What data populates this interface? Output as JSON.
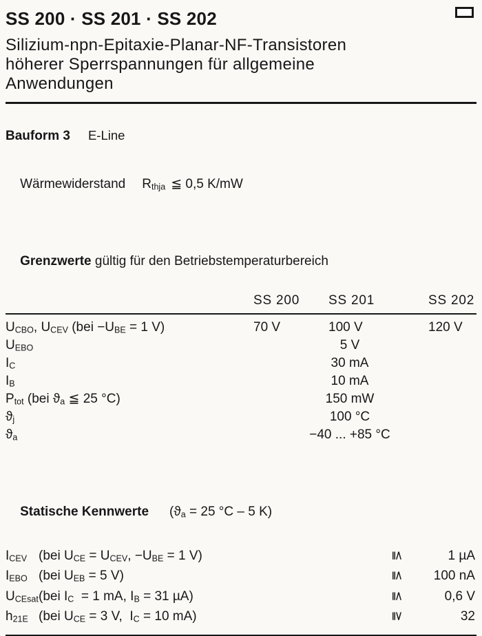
{
  "header": {
    "title": "SS 200 · SS 201 · SS 202",
    "subtitle_lines": [
      "Silizium-npn-Epitaxie-Planar-NF-Transistoren",
      "höherer Sperrspannungen für allgemeine",
      "Anwendungen"
    ]
  },
  "bauform": {
    "label": "Bauform 3",
    "value": "E-Line"
  },
  "thermal": {
    "label": "Wärmewiderstand",
    "symbol_main": "R",
    "symbol_sub": "thja",
    "value": "≦ 0,5 K/mW"
  },
  "grenzwerte": {
    "heading_bold": "Grenzwerte",
    "heading_rest": " gültig für den Betriebstemperaturbereich",
    "columns": [
      "SS 200",
      "SS 201",
      "SS 202"
    ],
    "row1": {
      "label": [
        "U",
        "CBO",
        ", U",
        "CEV",
        " (bei −U",
        "BE",
        " = 1 V)"
      ],
      "values": [
        "70 V",
        "100 V",
        "120 V"
      ]
    },
    "rows_center": [
      {
        "label": [
          "U",
          "EBO",
          "",
          "",
          "",
          "",
          ""
        ],
        "value": "5 V"
      },
      {
        "label": [
          "I",
          "C",
          "",
          "",
          "",
          "",
          ""
        ],
        "value": "30 mA"
      },
      {
        "label": [
          "I",
          "B",
          "",
          "",
          "",
          "",
          ""
        ],
        "value": "10 mA"
      },
      {
        "label": [
          "P",
          "tot",
          " (bei ϑ",
          "a",
          " ≦ 25 °C)",
          "",
          ""
        ],
        "value": "150 mW"
      },
      {
        "label": [
          "ϑ",
          "j",
          "",
          "",
          "",
          "",
          ""
        ],
        "value": "100 °C"
      },
      {
        "label": [
          "ϑ",
          "a",
          "",
          "",
          "",
          "",
          ""
        ],
        "value": "−40 ... +85 °C"
      }
    ]
  },
  "kennwerte": {
    "heading_bold": "Statische Kennwerte",
    "heading_cond": [
      "(ϑ",
      "a",
      " = 25 °C – 5 K)"
    ],
    "rows": [
      {
        "sym": [
          "I",
          "CEV"
        ],
        "cond": [
          "(bei U",
          "CE",
          " = U",
          "CEV",
          ", −U",
          "BE",
          " = 1 V)"
        ],
        "rel": "≦",
        "value": "1 µA"
      },
      {
        "sym": [
          "I",
          "EBO"
        ],
        "cond": [
          "(bei U",
          "EB",
          " = 5 V)",
          "",
          "",
          "",
          ""
        ],
        "rel": "≦",
        "value": "100 nA"
      },
      {
        "sym": [
          "U",
          "CEsat"
        ],
        "cond": [
          "(bei I",
          "C",
          "  = 1 mA, I",
          "B",
          " = 31 µA)",
          "",
          ""
        ],
        "rel": "≦",
        "value": "0,6 V"
      },
      {
        "sym": [
          "h",
          "21E"
        ],
        "cond": [
          "(bei U",
          "CE",
          " = 3 V,  I",
          "C",
          " = 10 mA)",
          "",
          ""
        ],
        "rel": "≧",
        "value": "32"
      }
    ]
  },
  "colors": {
    "ink": "#171717",
    "paper": "#faf9f6"
  }
}
